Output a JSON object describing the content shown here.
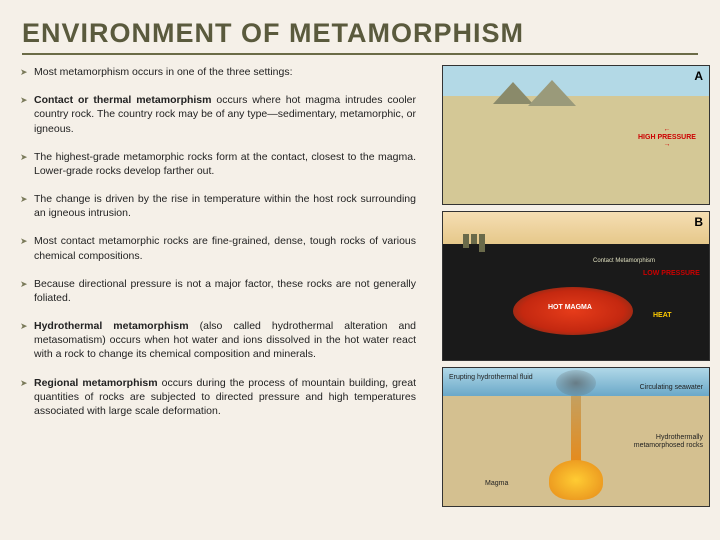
{
  "title": "ENVIRONMENT OF METAMORPHISM",
  "bullets": [
    {
      "text": "Most metamorphism occurs in one of the three settings:"
    },
    {
      "bold": "Contact or thermal metamorphism",
      "rest": " occurs where hot magma intrudes cooler country rock. The country rock may be of any type—sedimentary, metamorphic, or igneous."
    },
    {
      "text": "The highest-grade metamorphic rocks form at the contact, closest to the magma. Lower-grade rocks develop farther out."
    },
    {
      "text": "The change is driven by the rise in temperature within the host rock surrounding an igneous intrusion."
    },
    {
      "text": "Most contact metamorphic rocks are fine-grained, dense, tough rocks of various chemical compositions."
    },
    {
      "text": "Because directional pressure is not a major factor, these rocks are not generally foliated."
    },
    {
      "bold": "Hydrothermal metamorphism",
      "rest": " (also called hydrothermal alteration and metasomatism) occurs when hot water and ions dissolved in the hot water react with a rock to change its chemical composition and minerals."
    },
    {
      "bold": "Regional metamorphism",
      "rest": " occurs during the process of mountain building, great quantities of rocks are subjected to directed pressure and high temperatures associated with large scale deformation."
    }
  ],
  "diagramA": {
    "label": "A",
    "pressure": "HIGH\nPRESSURE"
  },
  "diagramB": {
    "label": "B",
    "contact": "Contact\nMetamorphism",
    "hotMagma": "HOT\nMAGMA",
    "pressure": "LOW\nPRESSURE",
    "heat": "HEAT"
  },
  "diagramC": {
    "erupt": "Erupting hydrothermal fluid",
    "circ": "Circulating seawater",
    "hydro": "Hydrothermally metamorphosed rocks",
    "magma": "Magma"
  }
}
